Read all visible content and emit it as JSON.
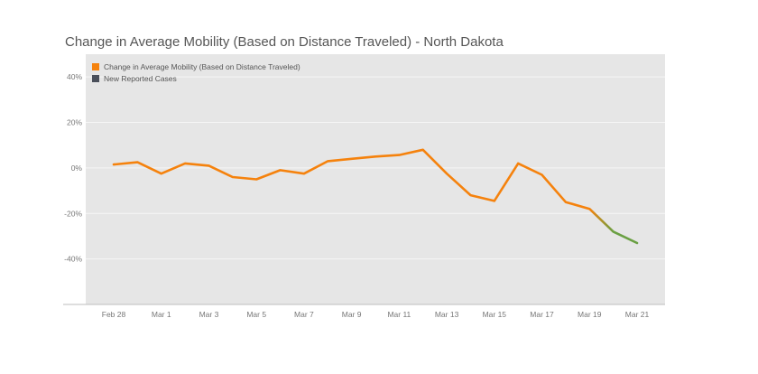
{
  "title": "Change in Average Mobility (Based on Distance Traveled) -  North Dakota",
  "legend": [
    {
      "label": "Change in Average Mobility (Based on Distance Traveled)",
      "color": "#f5820d"
    },
    {
      "label": "New Reported Cases",
      "color": "#4a4f5a"
    }
  ],
  "chart_data": {
    "type": "line",
    "title": "Change in Average Mobility (Based on Distance Traveled) -  North Dakota",
    "xlabel": "",
    "ylabel": "",
    "x": [
      "Feb 28",
      "Feb 29",
      "Mar 1",
      "Mar 2",
      "Mar 3",
      "Mar 4",
      "Mar 5",
      "Mar 6",
      "Mar 7",
      "Mar 8",
      "Mar 9",
      "Mar 10",
      "Mar 11",
      "Mar 12",
      "Mar 13",
      "Mar 14",
      "Mar 15",
      "Mar 16",
      "Mar 17",
      "Mar 18",
      "Mar 19",
      "Mar 20",
      "Mar 21"
    ],
    "x_tick_labels": [
      "Feb 28",
      "Mar 1",
      "Mar 3",
      "Mar 5",
      "Mar 7",
      "Mar 9",
      "Mar 11",
      "Mar 13",
      "Mar 15",
      "Mar 17",
      "Mar 19",
      "Mar 21"
    ],
    "y_ticks": [
      40,
      20,
      0,
      -20,
      -40
    ],
    "y_tick_labels": [
      "40%",
      "20%",
      "0%",
      "-20%",
      "-40%"
    ],
    "ylim": [
      -60,
      50
    ],
    "grid": true,
    "legend_position": "top-left",
    "series": [
      {
        "name": "Change in Average Mobility (Based on Distance Traveled)",
        "color": "#f5820d",
        "values": [
          1.5,
          2.5,
          -2.5,
          2.0,
          1.0,
          -4.0,
          -5.0,
          -1.0,
          -2.5,
          3.0,
          4.0,
          5.0,
          5.7,
          8.0,
          -2.5,
          -12.0,
          -14.5,
          2.0,
          -3.0,
          -15.0,
          -18.0,
          -28.0,
          -33.0
        ]
      }
    ],
    "new_cases_tint_color": "#6aa043",
    "new_cases_tint_start_index": 20
  }
}
